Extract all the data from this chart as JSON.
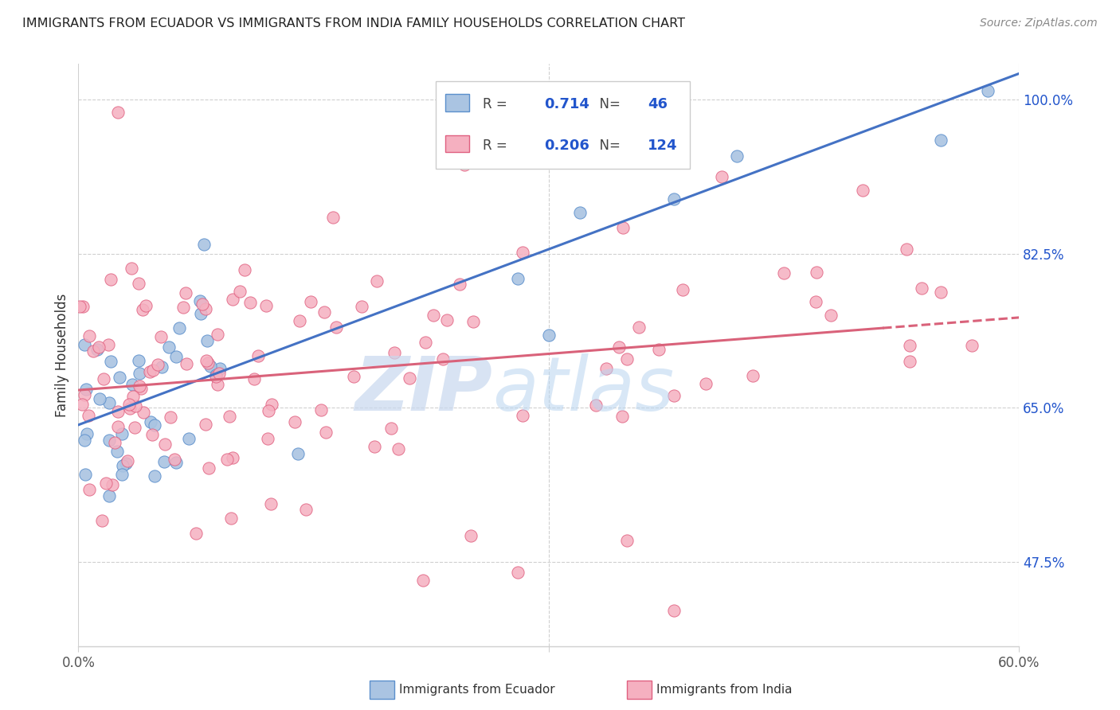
{
  "title": "IMMIGRANTS FROM ECUADOR VS IMMIGRANTS FROM INDIA FAMILY HOUSEHOLDS CORRELATION CHART",
  "source": "Source: ZipAtlas.com",
  "ylabel": "Family Households",
  "ytick_labels": [
    "100.0%",
    "82.5%",
    "65.0%",
    "47.5%"
  ],
  "ytick_values": [
    1.0,
    0.825,
    0.65,
    0.475
  ],
  "x_min": 0.0,
  "x_max": 0.6,
  "y_min": 0.38,
  "y_max": 1.04,
  "ecuador_R": 0.714,
  "ecuador_N": 46,
  "india_R": 0.206,
  "india_N": 124,
  "ecuador_color": "#aac4e2",
  "ecuador_edge_color": "#5b8fcc",
  "india_color": "#f5b0c0",
  "india_edge_color": "#e06080",
  "ecuador_line_color": "#4472c4",
  "india_line_color": "#d9627a",
  "watermark_zip_color": "#c8d8ee",
  "watermark_atlas_color": "#b8d4f0",
  "grid_color": "#d0d0d0",
  "title_color": "#222222",
  "source_color": "#888888",
  "label_color": "#333333",
  "right_axis_color": "#2255cc"
}
